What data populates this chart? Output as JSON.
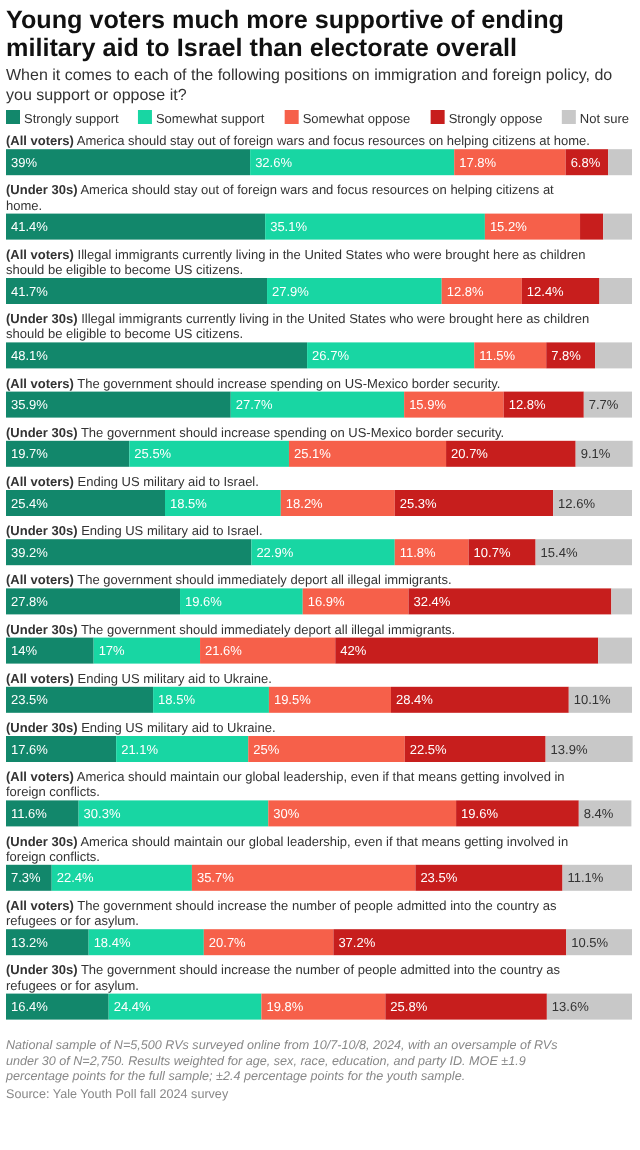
{
  "chart_data": {
    "type": "bar",
    "orientation": "horizontal",
    "stacked": true,
    "legend": "top left",
    "xlim": [
      0,
      100
    ],
    "tick_labels": "y",
    "title": "Young voters much more supportive of ending military aid to Israel than electorate overall",
    "subtitle": "When it comes to each of the following positions on immigration and foreign policy, do you support or oppose it?",
    "categories": [
      "(All voters) America should stay out of foreign wars and focus resources on helping citizens at home.",
      "(Under 30s) America should stay out of foreign wars and focus resources on helping citizens at home.",
      "(All voters) Illegal immigrants currently living in the United States who were brought here as children should be eligible to become US citizens.",
      "(Under 30s) Illegal immigrants currently living in the United States who were brought here as children should be eligible to become US citizens.",
      "(All voters) The government should increase spending on US-Mexico border security.",
      "(Under 30s) The government should increase spending on US-Mexico border security.",
      "(All voters) Ending US military aid to Israel.",
      "(Under 30s) Ending US military aid to Israel.",
      "(All voters) The government should immediately deport all illegal immigrants.",
      "(Under 30s) The government should immediately deport all illegal immigrants.",
      "(All voters) Ending US military aid to Ukraine.",
      "(Under 30s) Ending US military aid to Ukraine.",
      "(All voters) America should maintain our global leadership, even if that means getting involved in foreign conflicts.",
      "(Under 30s) America should maintain our global leadership, even if that means getting involved in foreign conflicts.",
      "(All voters) The government should increase the number of people admitted into the country as refugees or for asylum.",
      "(Under 30s) The government should increase the number of people admitted into the country as refugees or for asylum."
    ],
    "series": [
      {
        "name": "Strongly support",
        "color": "#12876b",
        "values": [
          39,
          41.4,
          41.7,
          48.1,
          35.9,
          19.7,
          25.4,
          39.2,
          27.8,
          14,
          23.5,
          17.6,
          11.6,
          7.3,
          13.2,
          16.4
        ],
        "value_labels": [
          "39%",
          "41.4%",
          "41.7%",
          "48.1%",
          "35.9%",
          "19.7%",
          "25.4%",
          "39.2%",
          "27.8%",
          "14%",
          "23.5%",
          "17.6%",
          "11.6%",
          "7.3%",
          "13.2%",
          "16.4%"
        ]
      },
      {
        "name": "Somewhat support",
        "color": "#18d6a3",
        "values": [
          32.6,
          35.1,
          27.9,
          26.7,
          27.7,
          25.5,
          18.5,
          22.9,
          19.6,
          17,
          18.5,
          21.1,
          30.3,
          22.4,
          18.4,
          24.4
        ],
        "value_labels": [
          "32.6%",
          "35.1%",
          "27.9%",
          "26.7%",
          "27.7%",
          "25.5%",
          "18.5%",
          "22.9%",
          "19.6%",
          "17%",
          "18.5%",
          "21.1%",
          "30.3%",
          "22.4%",
          "18.4%",
          "24.4%"
        ]
      },
      {
        "name": "Somewhat oppose",
        "color": "#f6604a",
        "values": [
          17.8,
          15.2,
          12.8,
          11.5,
          15.9,
          25.1,
          18.2,
          11.8,
          16.9,
          21.6,
          19.5,
          25,
          30,
          35.7,
          20.7,
          19.8
        ],
        "value_labels": [
          "17.8%",
          "15.2%",
          "12.8%",
          "11.5%",
          "15.9%",
          "25.1%",
          "18.2%",
          "11.8%",
          "16.9%",
          "21.6%",
          "19.5%",
          "25%",
          "30%",
          "35.7%",
          "20.7%",
          "19.8%"
        ]
      },
      {
        "name": "Strongly oppose",
        "color": "#c71e1d",
        "values": [
          6.8,
          3.7,
          12.4,
          7.8,
          12.8,
          20.7,
          25.3,
          10.7,
          32.4,
          42,
          28.4,
          22.5,
          19.6,
          23.5,
          37.2,
          25.8
        ],
        "value_labels": [
          "6.8%",
          null,
          "12.4%",
          "7.8%",
          "12.8%",
          "20.7%",
          "25.3%",
          "10.7%",
          "32.4%",
          "42%",
          "28.4%",
          "22.5%",
          "19.6%",
          "23.5%",
          "37.2%",
          "25.8%"
        ]
      },
      {
        "name": "Not sure",
        "color": "#c8c8c8",
        "values": [
          3.8,
          4.6,
          5.2,
          5.9,
          7.7,
          9.1,
          12.6,
          15.4,
          3.3,
          5.4,
          10.1,
          13.9,
          8.4,
          11.1,
          10.5,
          13.6
        ],
        "value_labels": [
          null,
          null,
          null,
          null,
          "7.7%",
          "9.1%",
          "12.6%",
          "15.4%",
          null,
          null,
          "10.1%",
          "13.9%",
          "8.4%",
          "11.1%",
          "10.5%",
          "13.6%"
        ]
      }
    ],
    "annotations": [
      "National sample of N=5,500 RVs surveyed online from 10/7-10/8, 2024, with an oversample of RVs under 30 of N=2,750. Results weighted for age, sex, race, education, and party ID. MOE ±1.9 percentage points for the full sample; ±2.4 percentage points for the youth sample.",
      "Source: Yale Youth Poll fall 2024 survey"
    ]
  }
}
